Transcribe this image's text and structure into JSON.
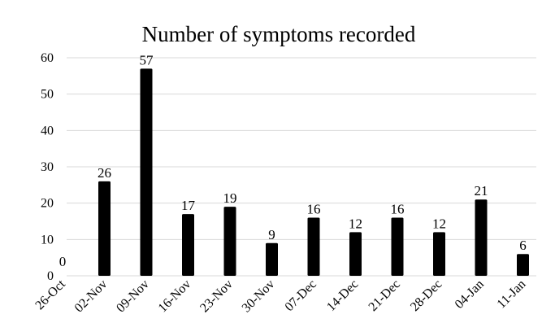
{
  "chart_data": {
    "type": "bar",
    "title": "Number of symptoms recorded",
    "xlabel": "",
    "ylabel": "",
    "categories": [
      "26-Oct",
      "02-Nov",
      "09-Nov",
      "16-Nov",
      "23-Nov",
      "30-Nov",
      "07-Dec",
      "14-Dec",
      "21-Dec",
      "28-Dec",
      "04-Jan",
      "11-Jan"
    ],
    "values": [
      0,
      26,
      57,
      17,
      19,
      9,
      16,
      12,
      16,
      12,
      21,
      6
    ],
    "data_labels": [
      "0",
      "26",
      "57",
      "17",
      "19",
      "9",
      "16",
      "12",
      "16",
      "12",
      "21",
      "6"
    ],
    "ylim": [
      0,
      60
    ],
    "yticks": [
      0,
      10,
      20,
      30,
      40,
      50,
      60
    ],
    "grid": true,
    "legend": "none",
    "colors": {
      "bar": "#000000",
      "grid": "#d9d9d9",
      "text": "#000000"
    }
  }
}
